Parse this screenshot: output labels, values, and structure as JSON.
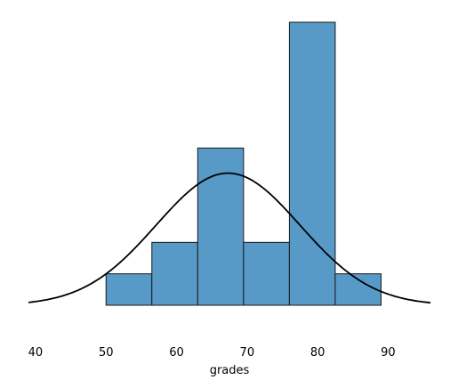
{
  "chart_data": {
    "type": "bar",
    "subtype": "histogram",
    "xlabel": "grades",
    "ylabel": "",
    "title": "",
    "xlim": [
      39,
      96
    ],
    "ylim": [
      -2.4,
      9.1
    ],
    "x_ticks": [
      40,
      50,
      60,
      70,
      80,
      90
    ],
    "bins": [
      {
        "start": 50.0,
        "end": 56.5,
        "count": 1
      },
      {
        "start": 56.5,
        "end": 63.0,
        "count": 2
      },
      {
        "start": 63.0,
        "end": 69.5,
        "count": 5
      },
      {
        "start": 69.5,
        "end": 76.0,
        "count": 2
      },
      {
        "start": 76.0,
        "end": 82.5,
        "count": 9
      },
      {
        "start": 82.5,
        "end": 89.0,
        "count": 1
      }
    ],
    "density_curve": {
      "type": "normal",
      "mean": 67.3,
      "std": 10.2,
      "peak": 4.2
    },
    "grid": false,
    "legend": "none",
    "colors": {
      "bar_fill": "#5799c7",
      "bar_edge": "#1a1a1a",
      "curve": "#000000"
    }
  }
}
